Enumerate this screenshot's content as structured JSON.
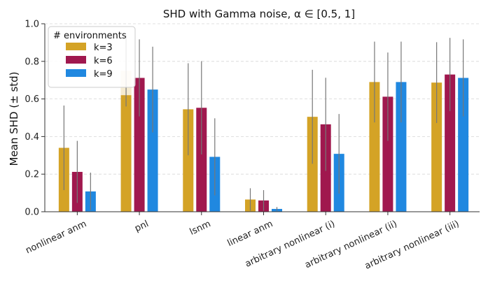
{
  "chart_data": {
    "type": "bar",
    "title": "SHD with Gamma noise, α ∈ [0.5, 1]",
    "xlabel": "",
    "ylabel": "Mean SHD (± std)",
    "ylim": [
      0,
      1.0
    ],
    "yticks": [
      "0.0",
      "0.2",
      "0.4",
      "0.6",
      "0.8",
      "1.0"
    ],
    "grid": "y-dashed",
    "categories": [
      "nonlinear anm",
      "pnl",
      "lsnm",
      "linear anm",
      "arbitrary nonlinear (i)",
      "arbitrary nonlinear (ii)",
      "arbitrary nonlinear (iii)"
    ],
    "legend": {
      "title": "# environments",
      "placement": "top-left"
    },
    "series": [
      {
        "name": "k=3",
        "color": "#d4a326",
        "values": [
          0.34,
          0.75,
          0.545,
          0.065,
          0.505,
          0.69,
          0.687
        ],
        "std": [
          0.225,
          0.19,
          0.245,
          0.06,
          0.25,
          0.215,
          0.215
        ]
      },
      {
        "name": "k=6",
        "color": "#a0184e",
        "values": [
          0.212,
          0.712,
          0.553,
          0.06,
          0.465,
          0.612,
          0.73
        ],
        "std": [
          0.165,
          0.205,
          0.248,
          0.055,
          0.248,
          0.235,
          0.195
        ]
      },
      {
        "name": "k=9",
        "color": "#2088e0",
        "values": [
          0.108,
          0.65,
          0.292,
          0.015,
          0.308,
          0.69,
          0.712
        ],
        "std": [
          0.1,
          0.228,
          0.205,
          0.01,
          0.212,
          0.215,
          0.205
        ]
      }
    ]
  }
}
